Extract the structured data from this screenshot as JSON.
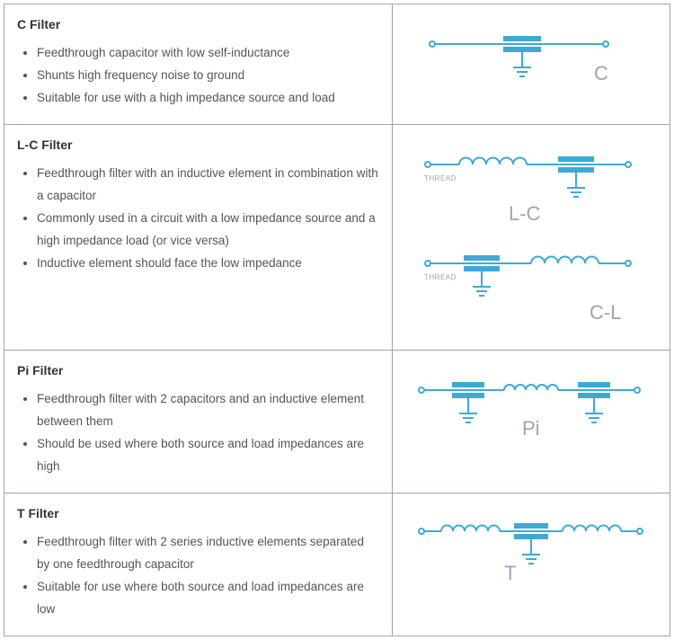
{
  "colors": {
    "border_outer": "#b8cce0",
    "border_inner": "#9aa6b2",
    "text_title": "#333333",
    "text_body": "#555555",
    "diagram_stroke": "#3fa9d6",
    "diagram_fill": "#3fa9d6",
    "diagram_label": "#9aa6b2"
  },
  "stroke_width": 2,
  "rows": [
    {
      "title": "C Filter",
      "bullets": [
        "Feedthrough capacitor with low self-inductance",
        "Shunts high frequency noise to ground",
        "Suitable for use with a high impedance source and load"
      ],
      "diagrams": [
        {
          "type": "C",
          "label": "C",
          "thread": false
        }
      ]
    },
    {
      "title": "L-C Filter",
      "bullets": [
        "Feedthrough filter with an inductive element in combination with a capacitor",
        "Commonly used in a circuit with a low impedance source and a high impedance load (or vice versa)",
        "Inductive element should face the low impedance"
      ],
      "diagrams": [
        {
          "type": "LC",
          "label": "L-C",
          "thread": true
        },
        {
          "type": "CL",
          "label": "C-L",
          "thread": true
        }
      ]
    },
    {
      "title": "Pi Filter",
      "bullets": [
        "Feedthrough filter with 2 capacitors and an inductive element between them",
        "Should be used where both source and load impedances are high"
      ],
      "diagrams": [
        {
          "type": "PI",
          "label": "Pi",
          "thread": false
        }
      ]
    },
    {
      "title": "T Filter",
      "bullets": [
        "Feedthrough filter with 2 series inductive elements separated by one feedthrough capacitor",
        "Suitable for use where both source and load impedances are low"
      ],
      "diagrams": [
        {
          "type": "T",
          "label": "T",
          "thread": false
        }
      ]
    }
  ]
}
